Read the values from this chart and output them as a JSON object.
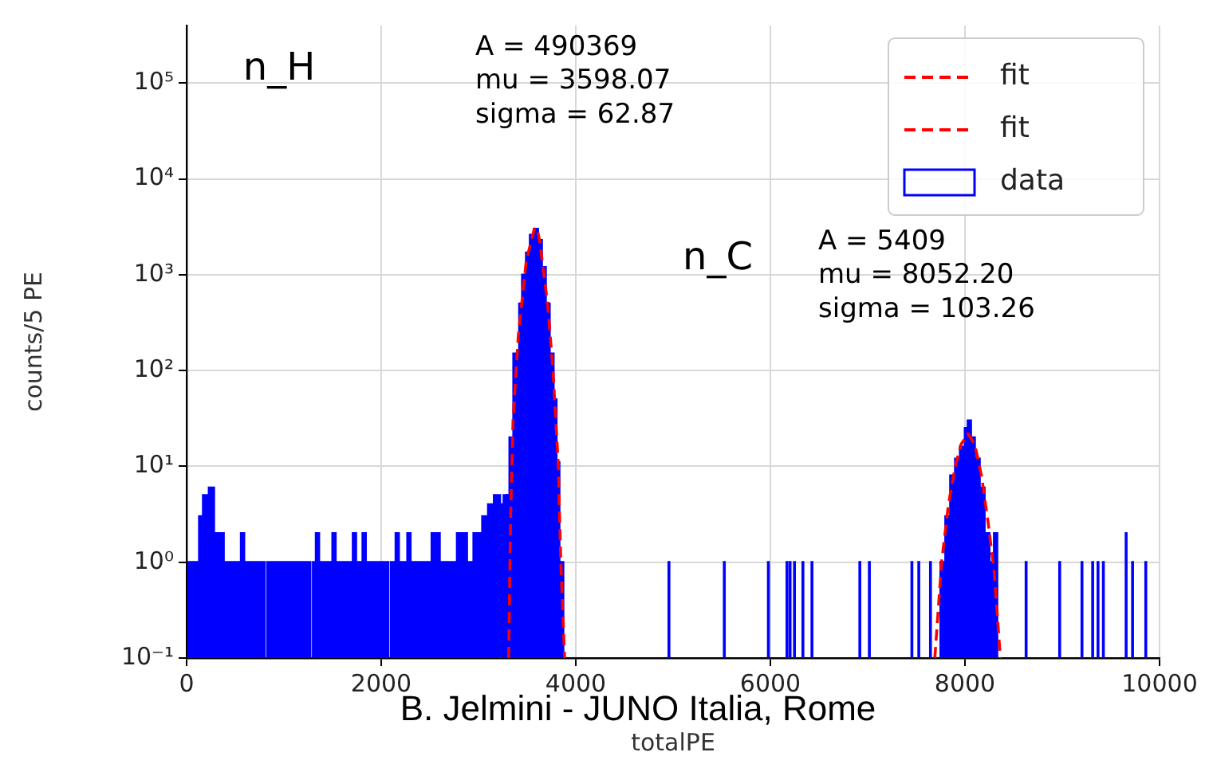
{
  "chart_data": {
    "type": "histogram",
    "xlabel": "totalPE",
    "ylabel": "counts/5 PE",
    "log": "y",
    "grid": true,
    "legend": "top right",
    "xlim": [
      0,
      10000
    ],
    "xticks": [
      0,
      2000,
      4000,
      6000,
      8000,
      10000
    ],
    "ylim": [
      0.1,
      400000
    ],
    "yticks": [
      {
        "value": 0.1,
        "label": "10⁻¹"
      },
      {
        "value": 1,
        "label": "10⁰"
      },
      {
        "value": 10,
        "label": "10¹"
      },
      {
        "value": 100,
        "label": "10²"
      },
      {
        "value": 1000,
        "label": "10³"
      },
      {
        "value": 10000,
        "label": "10⁴"
      },
      {
        "value": 100000,
        "label": "10⁵"
      }
    ],
    "annotations": [
      "n_H",
      "A = 490369\nmu = 3598.07\nsigma = 62.87",
      "n_C",
      "A = 5409\nmu = 8052.20\nsigma = 103.26",
      "B. Jelmini - JUNO Italia, Rome"
    ],
    "series": [
      {
        "type": "line",
        "name": "fit",
        "color": "#ff0000",
        "line_style": "dashed",
        "x": [
          3310,
          3330,
          3355,
          3409,
          3491,
          3573,
          3600,
          3628,
          3710,
          3764,
          3819,
          3846,
          3885
        ],
        "values": [
          0.1,
          3,
          30,
          230,
          1400,
          3000,
          3100,
          2300,
          500,
          107,
          11,
          1,
          0.1
        ]
      },
      {
        "type": "line",
        "name": "fit",
        "color": "#ff0000",
        "line_style": "dashed",
        "x": [
          7690,
          7760,
          7830,
          7900,
          7960,
          8030,
          8100,
          8170,
          8240,
          8300,
          8364
        ],
        "values": [
          0.1,
          1,
          4,
          10,
          17,
          22,
          17,
          8,
          2.5,
          0.8,
          0.1
        ]
      },
      {
        "type": "histogram",
        "name": "data",
        "color": "#0000ff",
        "bins": [
          20,
          50,
          70,
          130,
          170,
          230,
          280,
          380,
          560,
          590,
          800,
          830,
          1270,
          1300,
          1330,
          1360,
          1500,
          1530,
          1710,
          1740,
          1810,
          1840,
          2070,
          2100,
          2150,
          2180,
          2270,
          2300,
          2520,
          2600,
          2780,
          2880,
          2950,
          3040,
          3100,
          3160,
          3220,
          3260,
          3290,
          3320,
          3360,
          3420,
          3450,
          3490,
          3530,
          3570,
          3610,
          3650,
          3690,
          3730,
          3770,
          3800,
          3830,
          3870,
          4955,
          4960,
          5524,
          5529,
          5977,
          5982,
          6168,
          6173,
          6200,
          6205,
          6245,
          6250,
          6332,
          6337,
          6425,
          6430,
          6917,
          6922,
          7015,
          7020,
          7452,
          7457,
          7523,
          7528,
          7643,
          7648,
          7750,
          7800,
          7850,
          7900,
          7950,
          8000,
          8030,
          8060,
          8100,
          8150,
          8200,
          8250,
          8300,
          8330,
          8626,
          8631,
          8971,
          8976,
          9200,
          9205,
          9310,
          9315,
          9365,
          9370,
          9420,
          9425,
          9654,
          9659,
          9720,
          9725,
          9856,
          9861
        ],
        "values": [
          1,
          null,
          1,
          3,
          5,
          6,
          2,
          1,
          2,
          1,
          null,
          1,
          null,
          1,
          2,
          1,
          2,
          1,
          2,
          1,
          2,
          1,
          null,
          1,
          2,
          1,
          2,
          1,
          2,
          1,
          2,
          1,
          2,
          3,
          4,
          5,
          4,
          5,
          5,
          20,
          150,
          500,
          1000,
          1700,
          2600,
          3000,
          2300,
          1200,
          500,
          150,
          50,
          11,
          1,
          null,
          1,
          null,
          1,
          null,
          1,
          null,
          1,
          null,
          1,
          null,
          1,
          null,
          1,
          null,
          1,
          null,
          1,
          null,
          1,
          null,
          1,
          null,
          1,
          null,
          1,
          null,
          1,
          3,
          8,
          12,
          16,
          25,
          30,
          20,
          12,
          6,
          2,
          1,
          2,
          null,
          1,
          null,
          1,
          null,
          1,
          null,
          1,
          null,
          1,
          null,
          1,
          null,
          2,
          null,
          1,
          null,
          1
        ]
      }
    ]
  }
}
